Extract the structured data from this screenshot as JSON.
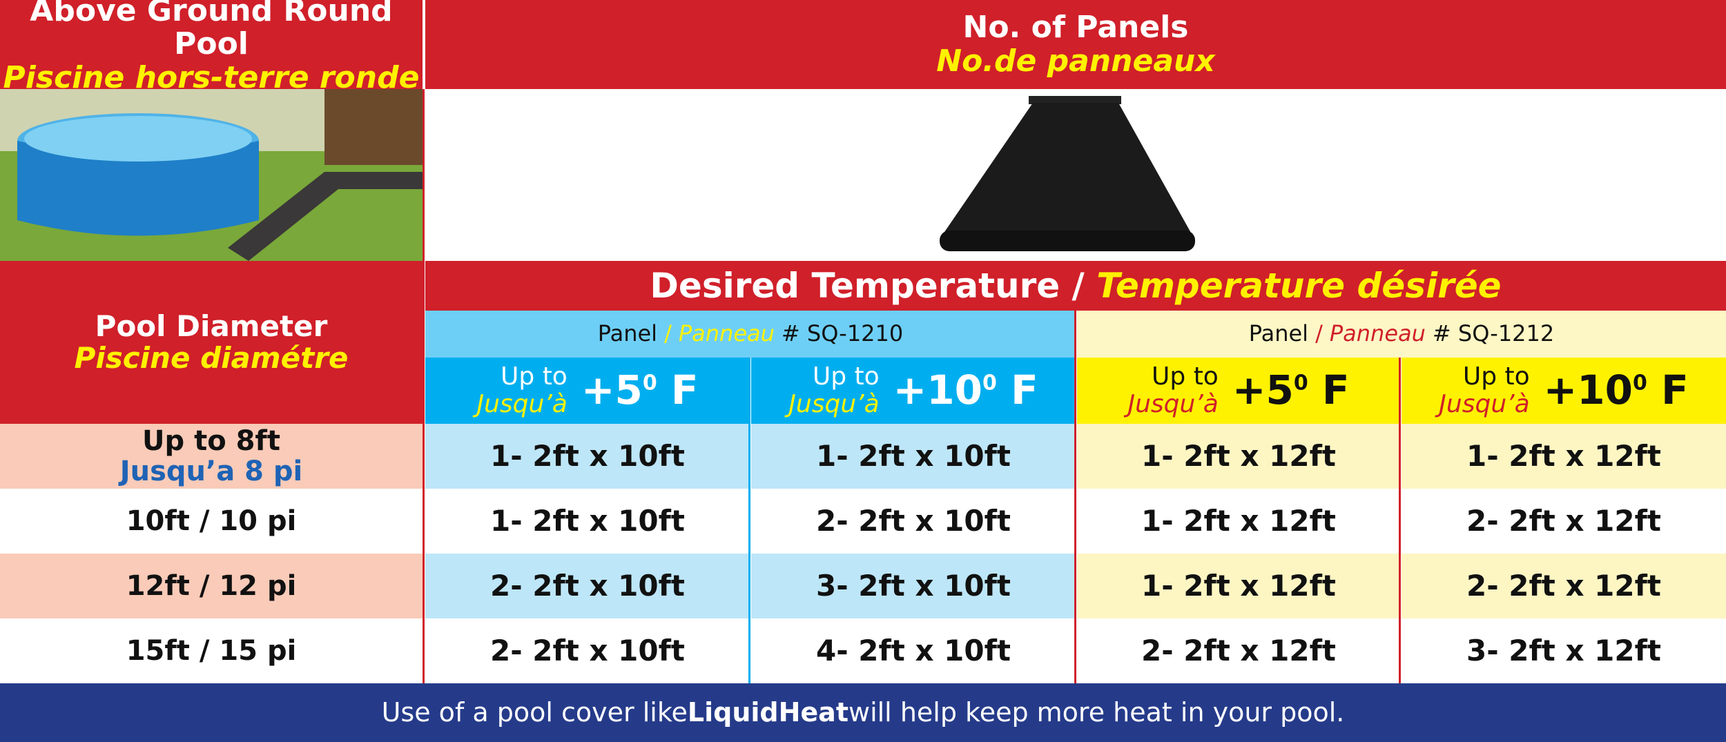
{
  "header": {
    "pool_title": "Above Ground Round Pool",
    "pool_title_fr": "Piscine hors-terre ronde",
    "panels_title": "No. of Panels",
    "panels_title_fr": "No.de panneaux"
  },
  "table": {
    "desired_temp": "Desired Temperature /",
    "desired_temp_fr": "Temperature désirée",
    "diameter_label": "Pool Diameter",
    "diameter_label_fr": "Piscine diamétre",
    "panel_groups": [
      {
        "label": "Panel",
        "sep": "/",
        "label_fr": "Panneau",
        "model": "# SQ-1210"
      },
      {
        "label": "Panel",
        "sep": "/",
        "label_fr": "Panneau",
        "model": "# SQ-1212"
      }
    ],
    "columns": [
      {
        "up_to": "Up to",
        "up_to_fr": "Jusqu’à",
        "temp": "+5",
        "degree": "0",
        "unit": "F"
      },
      {
        "up_to": "Up to",
        "up_to_fr": "Jusqu’à",
        "temp": "+10",
        "degree": "0",
        "unit": "F"
      },
      {
        "up_to": "Up to",
        "up_to_fr": "Jusqu’à",
        "temp": "+5",
        "degree": "0",
        "unit": "F"
      },
      {
        "up_to": "Up to",
        "up_to_fr": "Jusqu’à",
        "temp": "+10",
        "degree": "0",
        "unit": "F"
      }
    ],
    "rows": [
      {
        "diameter": "Up to 8ft",
        "diameter_fr": "Jusqu’a 8 pi",
        "cells": [
          "1- 2ft x 10ft",
          "1- 2ft x 10ft",
          "1- 2ft x 12ft",
          "1- 2ft x 12ft"
        ]
      },
      {
        "diameter": "10ft / 10 pi",
        "cells": [
          "1- 2ft x 10ft",
          "2- 2ft x 10ft",
          "1- 2ft x 12ft",
          "2- 2ft x 12ft"
        ]
      },
      {
        "diameter": "12ft / 12 pi",
        "cells": [
          "2- 2ft x 10ft",
          "3- 2ft x 10ft",
          "1- 2ft x 12ft",
          "2- 2ft x 12ft"
        ]
      },
      {
        "diameter": "15ft / 15 pi",
        "cells": [
          "2- 2ft x 10ft",
          "4- 2ft x 10ft",
          "2- 2ft x 12ft",
          "3- 2ft x 12ft"
        ]
      }
    ]
  },
  "footer": {
    "text_before": "Use of a pool cover like",
    "brand": "LiquidHeat",
    "text_after": "will help keep more heat in your pool."
  }
}
